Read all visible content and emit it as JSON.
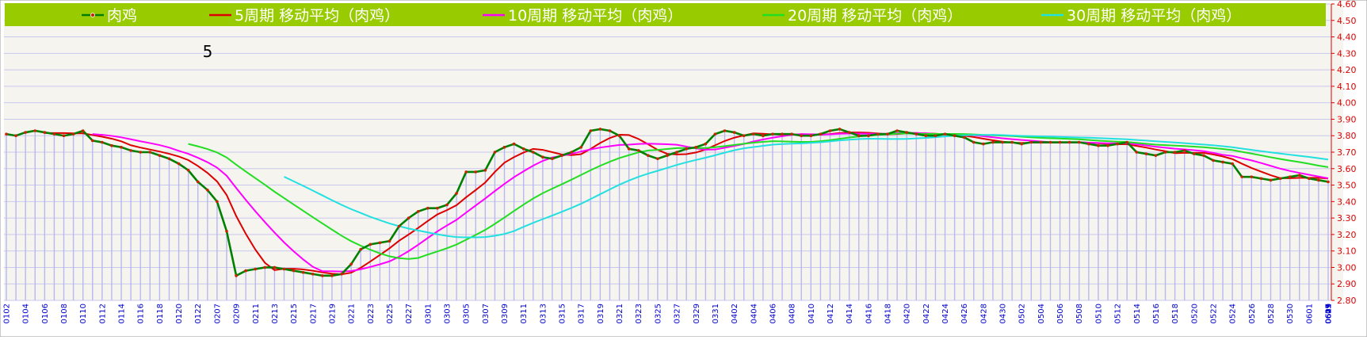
{
  "chart_data": {
    "type": "line",
    "title": "",
    "panel_label": "5",
    "xlabel": "",
    "ylabel": "",
    "ylim": [
      2.8,
      4.6
    ],
    "y_ticks": [
      "2.80",
      "2.90",
      "3.00",
      "3.10",
      "3.20",
      "3.30",
      "3.40",
      "3.50",
      "3.60",
      "3.70",
      "3.80",
      "3.90",
      "4.00",
      "4.10",
      "4.20",
      "4.30",
      "4.40",
      "4.50",
      "4.60"
    ],
    "x_tick_labels": [
      "0102",
      "0104",
      "0106",
      "0108",
      "0110",
      "0112",
      "0114",
      "0116",
      "0118",
      "0120",
      "0122",
      "0207",
      "0209",
      "0211",
      "0213",
      "0215",
      "0217",
      "0219",
      "0221",
      "0223",
      "0225",
      "0227",
      "0301",
      "0303",
      "0305",
      "0307",
      "0309",
      "0311",
      "0313",
      "0315",
      "0317",
      "0319",
      "0321",
      "0323",
      "0325",
      "0327",
      "0329",
      "0331",
      "0402",
      "0404",
      "0406",
      "0408",
      "0410",
      "0412",
      "0414",
      "0416",
      "0418",
      "0420",
      "0422",
      "0424",
      "0426",
      "0428",
      "0430",
      "0502",
      "0504",
      "0506",
      "0508",
      "0510",
      "0512",
      "0514",
      "0516",
      "0518",
      "0520",
      "0522",
      "0524",
      "0526",
      "0528",
      "0530",
      "0601",
      "0603",
      "0605",
      "0607",
      "0609",
      "0611",
      "0613",
      "0615",
      "0617",
      "0619",
      "0621",
      "0623",
      "0625",
      "0627",
      "0629"
    ],
    "legend_position": "top",
    "colors": {
      "legend_band": "#99cc00",
      "main": "#008000",
      "marker": "#cc2200",
      "ma5": "#dd0000",
      "ma10": "#ff00ff",
      "ma20": "#22dd22",
      "ma30": "#22e0e0",
      "bars": "#b8b8f0",
      "grid": "#c8c8ee",
      "axis_text": "#dd0000",
      "x_text": "#0000cc"
    },
    "series": [
      {
        "name": "肉鸡",
        "values": [
          3.81,
          3.8,
          3.82,
          3.83,
          3.82,
          3.81,
          3.8,
          3.81,
          3.83,
          3.77,
          3.76,
          3.74,
          3.73,
          3.71,
          3.7,
          3.7,
          3.68,
          3.66,
          3.63,
          3.59,
          3.52,
          3.47,
          3.4,
          3.22,
          2.95,
          2.98,
          2.99,
          3.0,
          3.0,
          2.99,
          2.98,
          2.97,
          2.96,
          2.95,
          2.95,
          2.96,
          3.02,
          3.11,
          3.14,
          3.15,
          3.16,
          3.25,
          3.3,
          3.34,
          3.36,
          3.36,
          3.38,
          3.45,
          3.58,
          3.58,
          3.59,
          3.7,
          3.73,
          3.75,
          3.72,
          3.7,
          3.67,
          3.66,
          3.68,
          3.7,
          3.73,
          3.83,
          3.84,
          3.83,
          3.8,
          3.72,
          3.71,
          3.68,
          3.66,
          3.68,
          3.7,
          3.72,
          3.73,
          3.75,
          3.81,
          3.83,
          3.82,
          3.8,
          3.81,
          3.8,
          3.81,
          3.81,
          3.81,
          3.8,
          3.8,
          3.81,
          3.83,
          3.84,
          3.82,
          3.8,
          3.8,
          3.81,
          3.81,
          3.83,
          3.82,
          3.81,
          3.8,
          3.8,
          3.81,
          3.8,
          3.79,
          3.76,
          3.75,
          3.76,
          3.76,
          3.76,
          3.75,
          3.76,
          3.76,
          3.76,
          3.76,
          3.76,
          3.76,
          3.75,
          3.74,
          3.74,
          3.75,
          3.76,
          3.7,
          3.69,
          3.68,
          3.7,
          3.7,
          3.71,
          3.69,
          3.68,
          3.65,
          3.64,
          3.63,
          3.55,
          3.55,
          3.54,
          3.53,
          3.54,
          3.55,
          3.56,
          3.54,
          3.53,
          3.52
        ]
      },
      {
        "name": "5周期 移动平均（肉鸡）",
        "window": 5
      },
      {
        "name": "10周期 移动平均（肉鸡）",
        "window": 10
      },
      {
        "name": "20周期 移动平均（肉鸡）",
        "window": 20
      },
      {
        "name": "30周期 移动平均（肉鸡）",
        "window": 30
      }
    ]
  }
}
